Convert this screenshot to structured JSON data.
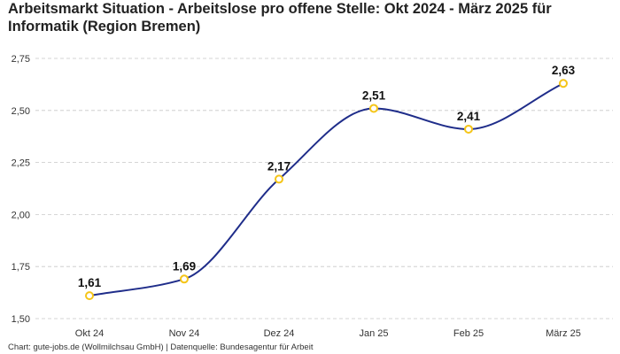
{
  "title": "Arbeitsmarkt Situation - Arbeitslose pro offene Stelle: Okt 2024 - März 2025 für Informatik (Region Bremen)",
  "footer": "Chart: gute-jobs.de (Wollmilchsau GmbH) | Datenquelle: Bundesagentur für Arbeit",
  "colors": {
    "line": "#1f2d8a",
    "marker": "#f5c518",
    "marker_fill": "#ffffff"
  },
  "chart_data": {
    "type": "line",
    "title": "Arbeitsmarkt Situation - Arbeitslose pro offene Stelle: Okt 2024 - März 2025 für Informatik (Region Bremen)",
    "xlabel": "",
    "ylabel": "",
    "categories": [
      "Okt 24",
      "Nov 24",
      "Dez 24",
      "Jan 25",
      "Feb 25",
      "März 25"
    ],
    "values": [
      1.61,
      1.69,
      2.17,
      2.51,
      2.41,
      2.63
    ],
    "data_labels": [
      "1,61",
      "1,69",
      "2,17",
      "2,51",
      "2,41",
      "2,63"
    ],
    "ylim": [
      1.5,
      2.75
    ],
    "yticks": [
      1.5,
      1.75,
      2.0,
      2.25,
      2.5,
      2.75
    ],
    "ytick_labels": [
      "1,50",
      "1,75",
      "2,00",
      "2,25",
      "2,50",
      "2,75"
    ],
    "grid": true,
    "smooth": true
  }
}
